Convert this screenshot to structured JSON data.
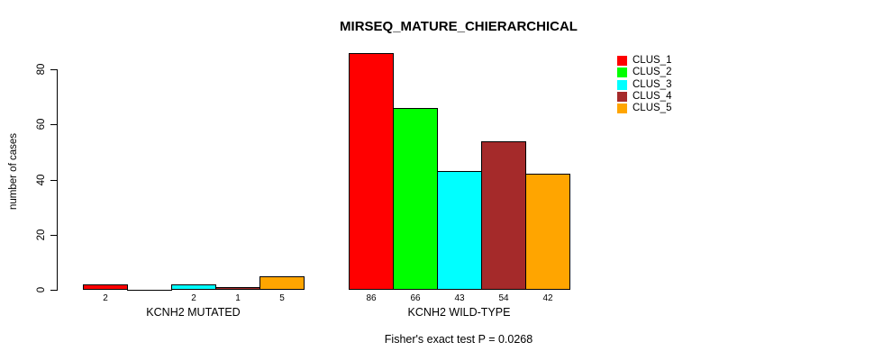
{
  "chart_data": {
    "type": "bar",
    "title": "MIRSEQ_MATURE_CHIERARCHICAL",
    "ylabel": "number of cases",
    "xlabel": "",
    "ylim": [
      0,
      86
    ],
    "yticks": [
      0,
      20,
      40,
      60,
      80
    ],
    "grid": false,
    "legend_position": "top-right",
    "categories": [
      "KCNH2 MUTATED",
      "KCNH2 WILD-TYPE"
    ],
    "series": [
      {
        "name": "CLUS_1",
        "color": "#FF0000",
        "values": [
          2,
          86
        ]
      },
      {
        "name": "CLUS_2",
        "color": "#00FF00",
        "values": [
          0,
          66
        ]
      },
      {
        "name": "CLUS_3",
        "color": "#00FFFF",
        "values": [
          2,
          43
        ]
      },
      {
        "name": "CLUS_4",
        "color": "#A52A2A",
        "values": [
          1,
          54
        ]
      },
      {
        "name": "CLUS_5",
        "color": "#FFA500",
        "values": [
          5,
          42
        ]
      }
    ],
    "bar_value_labels": [
      [
        "2",
        "",
        "2",
        "1",
        "5"
      ],
      [
        "86",
        "66",
        "43",
        "54",
        "42"
      ]
    ],
    "annotation": "Fisher's exact test P = 0.0268"
  }
}
